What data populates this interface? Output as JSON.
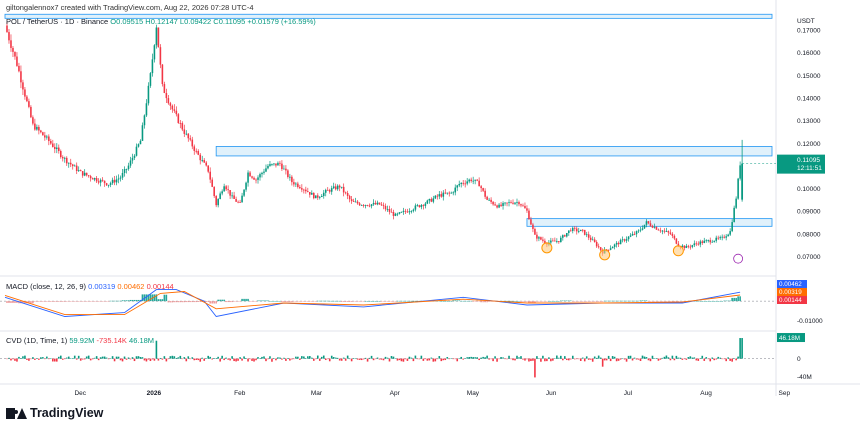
{
  "credit": "giltongalennox7 created with TradingView.com, Aug 22, 2026 07:28 UTC-4",
  "symbol_line": {
    "pair": "POL / TetherUS · 1D · Binance",
    "o": "O0.09515",
    "h": "H0.12147",
    "l": "L0.09422",
    "c": "C0.11095",
    "chg": "+0.01579 (+16.59%)"
  },
  "currency": "USDT",
  "colors": {
    "up": "#089981",
    "down": "#f23645",
    "zone_fill": "#d8eefa",
    "zone_border": "#2196f3",
    "circle": "#ff9800",
    "macd": "#2962ff",
    "signal": "#ff6d00"
  },
  "chart_data": [
    {
      "type": "candlestick",
      "title": "POL / TetherUS · 1D · Binance",
      "ylabel": "USDT",
      "y_ticks": [
        0.17,
        0.16,
        0.15,
        0.14,
        0.13,
        0.12,
        0.11,
        0.1,
        0.09,
        0.08,
        0.07
      ],
      "ylim": [
        0.064,
        0.178
      ],
      "x_ticks": [
        "Dec",
        "2026",
        "Feb",
        "Mar",
        "Apr",
        "May",
        "Jun",
        "Jul",
        "Aug",
        "Sep"
      ],
      "last_price": "0.11095",
      "countdown": "12:11:51",
      "close_path": [
        [
          0,
          0.172
        ],
        [
          6,
          0.155
        ],
        [
          14,
          0.128
        ],
        [
          22,
          0.121
        ],
        [
          30,
          0.113
        ],
        [
          38,
          0.107
        ],
        [
          46,
          0.104
        ],
        [
          52,
          0.102
        ],
        [
          58,
          0.105
        ],
        [
          62,
          0.11
        ],
        [
          68,
          0.121
        ],
        [
          73,
          0.15
        ],
        [
          76,
          0.172
        ],
        [
          79,
          0.145
        ],
        [
          84,
          0.135
        ],
        [
          90,
          0.125
        ],
        [
          96,
          0.116
        ],
        [
          102,
          0.108
        ],
        [
          106,
          0.093
        ],
        [
          110,
          0.102
        ],
        [
          114,
          0.096
        ],
        [
          118,
          0.093
        ],
        [
          122,
          0.107
        ],
        [
          126,
          0.104
        ],
        [
          132,
          0.11
        ],
        [
          138,
          0.111
        ],
        [
          144,
          0.103
        ],
        [
          150,
          0.1
        ],
        [
          156,
          0.096
        ],
        [
          162,
          0.099
        ],
        [
          168,
          0.101
        ],
        [
          174,
          0.094
        ],
        [
          180,
          0.093
        ],
        [
          188,
          0.093
        ],
        [
          196,
          0.088
        ],
        [
          204,
          0.091
        ],
        [
          212,
          0.094
        ],
        [
          218,
          0.097
        ],
        [
          224,
          0.098
        ],
        [
          228,
          0.102
        ],
        [
          234,
          0.104
        ],
        [
          238,
          0.102
        ],
        [
          242,
          0.095
        ],
        [
          248,
          0.092
        ],
        [
          254,
          0.094
        ],
        [
          258,
          0.094
        ],
        [
          262,
          0.09
        ],
        [
          266,
          0.079
        ],
        [
          272,
          0.076
        ],
        [
          278,
          0.077
        ],
        [
          284,
          0.082
        ],
        [
          290,
          0.081
        ],
        [
          296,
          0.076
        ],
        [
          300,
          0.072
        ],
        [
          306,
          0.075
        ],
        [
          312,
          0.078
        ],
        [
          318,
          0.081
        ],
        [
          322,
          0.085
        ],
        [
          328,
          0.082
        ],
        [
          334,
          0.08
        ],
        [
          338,
          0.075
        ],
        [
          342,
          0.074
        ],
        [
          348,
          0.076
        ],
        [
          354,
          0.077
        ],
        [
          360,
          0.078
        ],
        [
          364,
          0.081
        ],
        [
          367,
          0.096
        ],
        [
          369,
          0.111
        ]
      ],
      "zones": [
        {
          "t0": 0,
          "t1": 385,
          "top": 0.177,
          "bottom": 0.1752
        },
        {
          "t0": 106,
          "t1": 385,
          "top": 0.1186,
          "bottom": 0.1144
        },
        {
          "t0": 262,
          "t1": 385,
          "top": 0.0867,
          "bottom": 0.0833
        }
      ],
      "circles": [
        {
          "t": 272,
          "price": 0.0738
        },
        {
          "t": 301,
          "price": 0.0707
        },
        {
          "t": 338,
          "price": 0.0725
        }
      ]
    },
    {
      "type": "line",
      "title": "MACD (close, 12, 26, 9)",
      "values_label": [
        "0.00319",
        "0.00462",
        "0.00144"
      ],
      "y_ticks": [
        0,
        -0.01
      ],
      "y_tick_labels": [
        "0",
        "-0.01000"
      ],
      "ylim": [
        -0.014,
        0.011
      ],
      "series": [
        {
          "name": "MACD",
          "points": [
            [
              0,
              0.002
            ],
            [
              30,
              -0.008
            ],
            [
              60,
              -0.006
            ],
            [
              76,
              0.006
            ],
            [
              86,
              0.006
            ],
            [
              100,
              0.0
            ],
            [
              106,
              -0.008
            ],
            [
              140,
              -0.001
            ],
            [
              180,
              -0.003
            ],
            [
              230,
              0.002
            ],
            [
              262,
              -0.002
            ],
            [
              300,
              -0.001
            ],
            [
              340,
              -0.001
            ],
            [
              369,
              0.00462
            ]
          ]
        },
        {
          "name": "Signal",
          "points": [
            [
              0,
              0.003
            ],
            [
              30,
              -0.007
            ],
            [
              60,
              -0.007
            ],
            [
              78,
              0.004
            ],
            [
              90,
              0.005
            ],
            [
              106,
              -0.004
            ],
            [
              140,
              -0.001
            ],
            [
              180,
              -0.002
            ],
            [
              230,
              0.001
            ],
            [
              262,
              -0.001
            ],
            [
              300,
              -0.001
            ],
            [
              340,
              -0.0005
            ],
            [
              369,
              0.00319
            ]
          ]
        }
      ],
      "last_labels": [
        {
          "value": "0.00462",
          "color": "#2962ff"
        },
        {
          "value": "0.00319",
          "color": "#ff6d00"
        },
        {
          "value": "0.00144",
          "color": "#f23645"
        }
      ]
    },
    {
      "type": "bar",
      "title": "CVD (1D, Time, 1)",
      "values_label": [
        "59.92M",
        "-735.14K",
        "46.18M"
      ],
      "y_ticks": [
        0,
        -40
      ],
      "y_tick_labels": [
        "0",
        "-40M"
      ],
      "ylim": [
        -50,
        55
      ],
      "last_label": "46.18M"
    }
  ]
}
